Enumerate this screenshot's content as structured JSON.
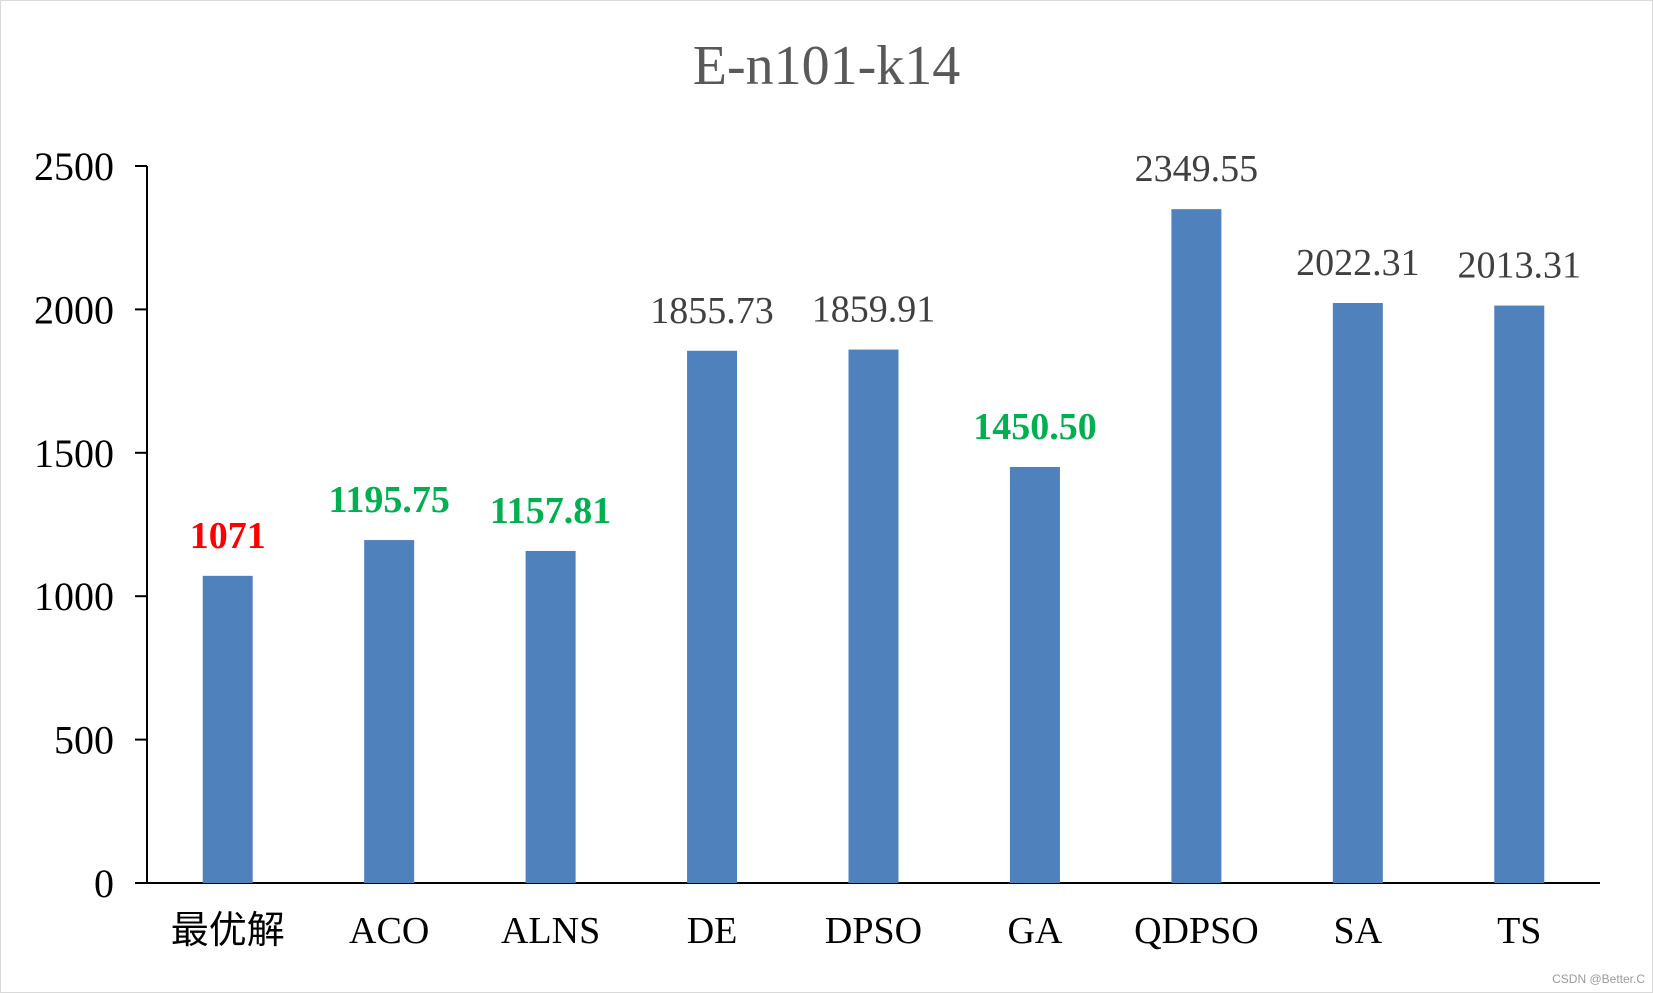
{
  "chart_data": {
    "type": "bar",
    "title": "E-n101-k14",
    "xlabel": "",
    "ylabel": "",
    "ylim": [
      0,
      2500
    ],
    "yticks": [
      0,
      500,
      1000,
      1500,
      2000,
      2500
    ],
    "grid": false,
    "legend": "none",
    "categories": [
      "最优解",
      "ACO",
      "ALNS",
      "DE",
      "DPSO",
      "GA",
      "QDPSO",
      "SA",
      "TS"
    ],
    "values": [
      1071,
      1195.75,
      1157.81,
      1855.73,
      1859.91,
      1450.5,
      2349.55,
      2022.31,
      2013.31
    ],
    "data_labels": [
      "1071",
      "1195.75",
      "1157.81",
      "1855.73",
      "1859.91",
      "1450.50",
      "2349.55",
      "2022.31",
      "2013.31"
    ],
    "label_colors": [
      "#ff0000",
      "#00b050",
      "#00b050",
      "#404040",
      "#404040",
      "#00b050",
      "#404040",
      "#404040",
      "#404040"
    ],
    "label_bold": [
      true,
      true,
      true,
      false,
      false,
      true,
      false,
      false,
      false
    ],
    "bar_color": "#4f81bd"
  },
  "watermark": "CSDN @Better.C"
}
